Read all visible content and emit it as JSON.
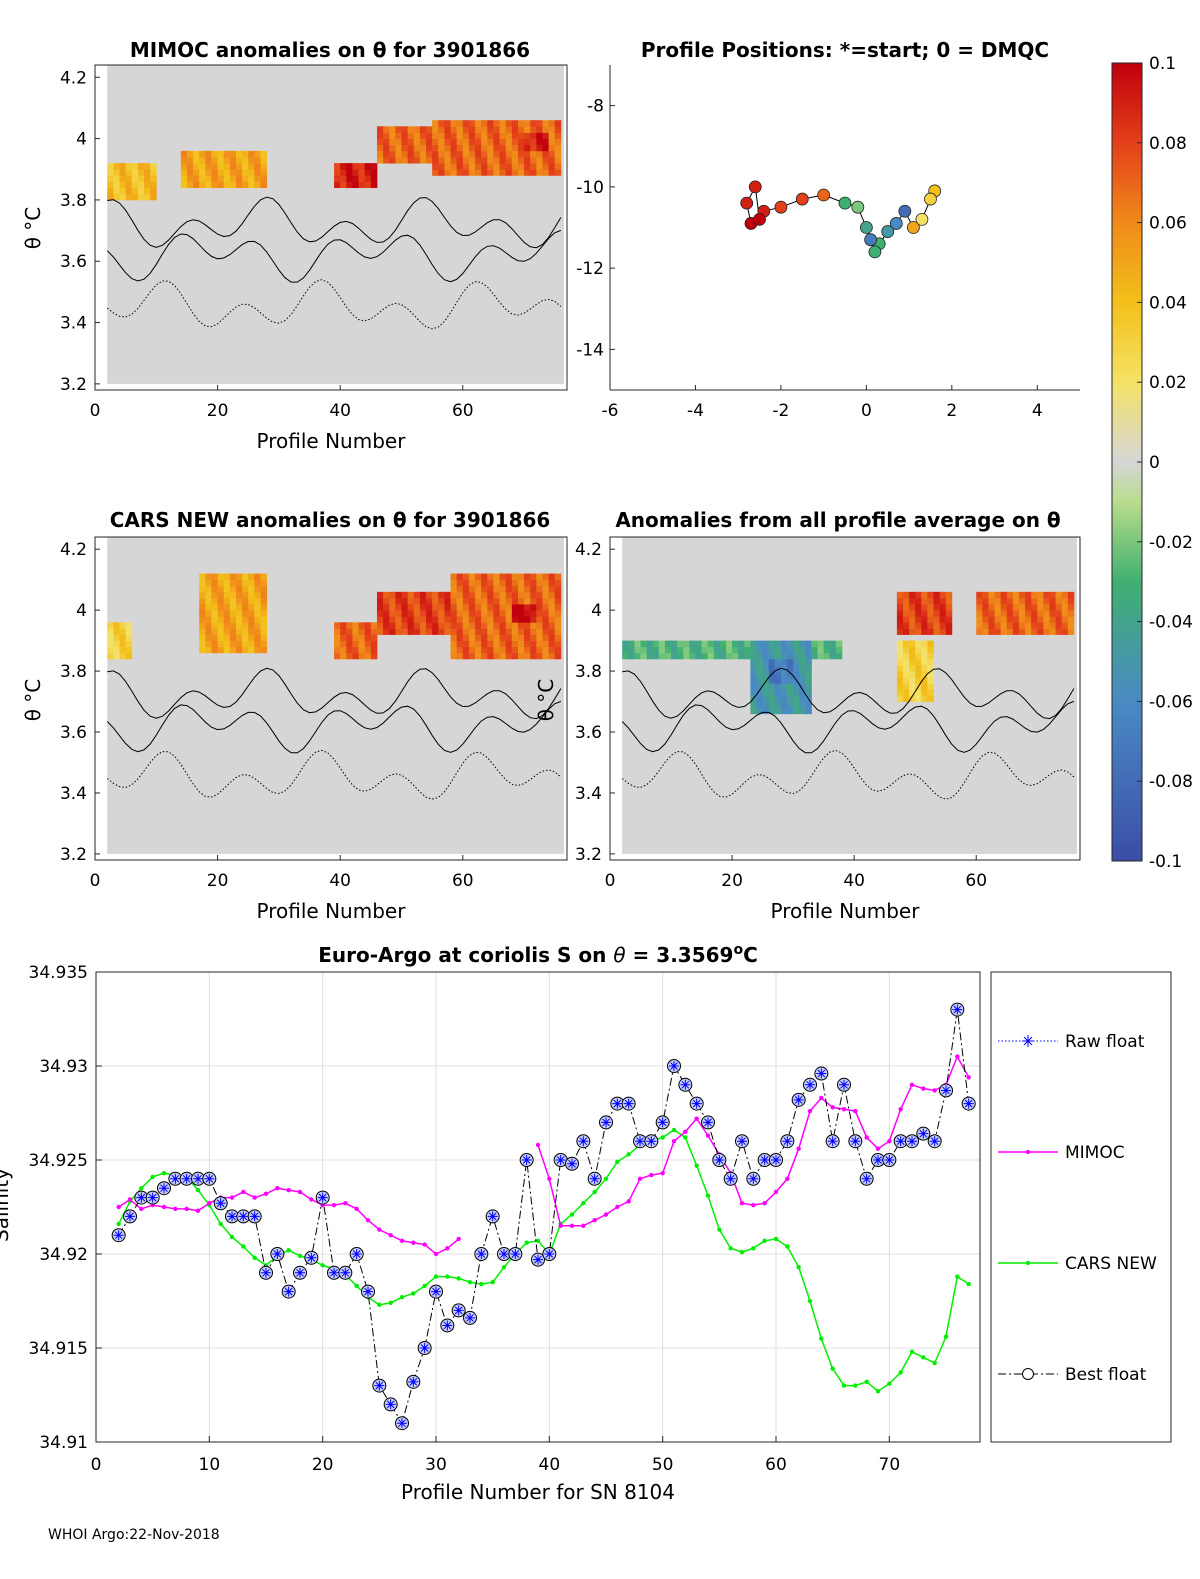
{
  "footer": "WHOI Argo:22-Nov-2018",
  "chart_data": [
    {
      "type": "heatmap",
      "id": "mimoc",
      "title": "MIMOC anomalies on θ  for 3901866",
      "xlabel": "Profile Number",
      "ylabel": "θ °C",
      "xlim": [
        0,
        77
      ],
      "ylim": [
        3.18,
        4.24
      ],
      "xticks": [
        "0",
        "20",
        "40",
        "60"
      ],
      "yticks": [
        "3.2",
        "3.4",
        "3.6",
        "3.8",
        "4",
        "4.2"
      ],
      "features": [
        {
          "x": [
            2,
            10
          ],
          "y": [
            3.8,
            3.92
          ],
          "value": 0.04
        },
        {
          "x": [
            14,
            28
          ],
          "y": [
            3.84,
            3.96
          ],
          "value": 0.05
        },
        {
          "x": [
            39,
            46
          ],
          "y": [
            3.84,
            3.92
          ],
          "value": 0.09
        },
        {
          "x": [
            46,
            55
          ],
          "y": [
            3.92,
            4.04
          ],
          "value": 0.07
        },
        {
          "x": [
            55,
            76
          ],
          "y": [
            3.88,
            4.06
          ],
          "value": 0.07
        },
        {
          "x": [
            70,
            74
          ],
          "y": [
            3.96,
            4.02
          ],
          "value": 0.09
        }
      ]
    },
    {
      "type": "scatter",
      "id": "positions",
      "title": "Profile Positions: *=start; 0 = DMQC",
      "xlim": [
        -6,
        5
      ],
      "ylim": [
        -15,
        -7
      ],
      "xticks": [
        "-6",
        "-4",
        "-2",
        "0",
        "2",
        "4"
      ],
      "yticks": [
        "-8",
        "-10",
        "-12",
        "-14"
      ],
      "points": [
        {
          "x": 1.6,
          "y": -10.1,
          "value": 0.04
        },
        {
          "x": 1.5,
          "y": -10.3,
          "value": 0.03
        },
        {
          "x": 1.3,
          "y": -10.8,
          "value": 0.02
        },
        {
          "x": 1.1,
          "y": -11.0,
          "value": 0.05
        },
        {
          "x": 0.9,
          "y": -10.6,
          "value": -0.08
        },
        {
          "x": 0.7,
          "y": -10.9,
          "value": -0.06
        },
        {
          "x": 0.5,
          "y": -11.1,
          "value": -0.05
        },
        {
          "x": 0.3,
          "y": -11.4,
          "value": -0.03
        },
        {
          "x": 0.2,
          "y": -11.6,
          "value": -0.03
        },
        {
          "x": 0.1,
          "y": -11.3,
          "value": -0.07
        },
        {
          "x": 0.0,
          "y": -11.0,
          "value": -0.04
        },
        {
          "x": -0.2,
          "y": -10.5,
          "value": -0.02
        },
        {
          "x": -0.5,
          "y": -10.4,
          "value": -0.03
        },
        {
          "x": -1.0,
          "y": -10.2,
          "value": 0.07
        },
        {
          "x": -1.5,
          "y": -10.3,
          "value": 0.08
        },
        {
          "x": -2.0,
          "y": -10.5,
          "value": 0.08
        },
        {
          "x": -2.4,
          "y": -10.6,
          "value": 0.09
        },
        {
          "x": -2.7,
          "y": -10.9,
          "value": 0.1
        },
        {
          "x": -2.8,
          "y": -10.4,
          "value": 0.09
        },
        {
          "x": -2.6,
          "y": -10.0,
          "value": 0.09
        },
        {
          "x": -2.5,
          "y": -10.8,
          "value": 0.1
        }
      ]
    },
    {
      "type": "heatmap",
      "id": "cars",
      "title": "CARS NEW anomalies on θ for 3901866",
      "xlabel": "Profile Number",
      "ylabel": "θ °C",
      "xlim": [
        0,
        77
      ],
      "ylim": [
        3.18,
        4.24
      ],
      "xticks": [
        "0",
        "20",
        "40",
        "60"
      ],
      "yticks": [
        "3.2",
        "3.4",
        "3.6",
        "3.8",
        "4",
        "4.2"
      ],
      "features": [
        {
          "x": [
            2,
            6
          ],
          "y": [
            3.84,
            3.96
          ],
          "value": 0.03
        },
        {
          "x": [
            17,
            28
          ],
          "y": [
            3.86,
            4.1
          ],
          "value": 0.05
        },
        {
          "x": [
            39,
            46
          ],
          "y": [
            3.84,
            3.96
          ],
          "value": 0.07
        },
        {
          "x": [
            46,
            58
          ],
          "y": [
            3.92,
            4.06
          ],
          "value": 0.08
        },
        {
          "x": [
            58,
            76
          ],
          "y": [
            3.84,
            4.1
          ],
          "value": 0.07
        },
        {
          "x": [
            68,
            72
          ],
          "y": [
            3.96,
            4.02
          ],
          "value": 0.1
        }
      ]
    },
    {
      "type": "heatmap",
      "id": "allavg",
      "title": "Anomalies from all profile average on θ",
      "xlabel": "Profile Number",
      "ylabel": "θ °C",
      "xlim": [
        0,
        77
      ],
      "ylim": [
        3.18,
        4.24
      ],
      "xticks": [
        "0",
        "20",
        "40",
        "60"
      ],
      "yticks": [
        "3.2",
        "3.4",
        "3.6",
        "3.8",
        "4",
        "4.2"
      ],
      "features": [
        {
          "x": [
            2,
            38
          ],
          "y": [
            3.84,
            3.9
          ],
          "value": -0.03
        },
        {
          "x": [
            23,
            33
          ],
          "y": [
            3.65,
            3.9
          ],
          "value": -0.05
        },
        {
          "x": [
            26,
            30
          ],
          "y": [
            3.76,
            3.84
          ],
          "value": -0.07
        },
        {
          "x": [
            47,
            56
          ],
          "y": [
            3.92,
            4.06
          ],
          "value": 0.08
        },
        {
          "x": [
            60,
            76
          ],
          "y": [
            3.92,
            4.06
          ],
          "value": 0.07
        },
        {
          "x": [
            47,
            53
          ],
          "y": [
            3.7,
            3.9
          ],
          "value": 0.03
        }
      ]
    },
    {
      "type": "line",
      "id": "salinity",
      "title": "Euro-Argo at coriolis S on θ = 3.3569°C",
      "title_pre": "Euro-Argo at coriolis S on ",
      "title_theta": "θ",
      "title_val": " = 3.3569",
      "title_sup": "o",
      "title_post": "C",
      "xlabel": "Profile Number for SN 8104",
      "ylabel": "Salinity",
      "xlim": [
        0,
        78
      ],
      "ylim": [
        34.91,
        34.935
      ],
      "xticks": [
        "0",
        "10",
        "20",
        "30",
        "40",
        "50",
        "60",
        "70"
      ],
      "yticks": [
        "34.91",
        "34.915",
        "34.92",
        "34.925",
        "34.93",
        "34.935"
      ],
      "series": [
        {
          "name": "Raw float",
          "color": "#0000ff",
          "x": [
            2,
            3,
            4,
            5,
            6,
            7,
            8,
            9,
            10,
            11,
            12,
            13,
            14,
            15,
            16,
            17,
            18,
            19,
            20,
            21,
            22,
            23,
            24,
            25,
            26,
            27,
            28,
            29,
            30,
            31,
            32,
            33,
            34,
            35,
            36,
            37,
            38,
            39,
            40,
            41,
            42,
            43,
            44,
            45,
            46,
            47,
            48,
            49,
            50,
            51,
            52,
            53,
            54,
            55,
            56,
            57,
            58,
            59,
            60,
            61,
            62,
            63,
            64,
            65,
            66,
            67,
            68,
            69,
            70,
            71,
            72,
            73,
            74,
            75,
            76,
            77
          ],
          "values": [
            34.921,
            34.922,
            34.923,
            34.923,
            34.9235,
            34.924,
            34.924,
            34.924,
            34.924,
            34.9227,
            34.922,
            34.922,
            34.922,
            34.919,
            34.92,
            34.918,
            34.919,
            34.9198,
            34.923,
            34.919,
            34.919,
            34.92,
            34.918,
            34.913,
            34.912,
            34.911,
            34.9132,
            34.915,
            34.918,
            34.9162,
            34.917,
            34.9166,
            34.92,
            34.922,
            34.92,
            34.92,
            34.925,
            34.9197,
            34.92,
            34.925,
            34.9248,
            34.926,
            34.924,
            34.927,
            34.928,
            34.928,
            34.926,
            34.926,
            34.927,
            34.93,
            34.929,
            34.928,
            34.927,
            34.925,
            34.924,
            34.926,
            34.924,
            34.925,
            34.925,
            34.926,
            34.9282,
            34.929,
            34.9296,
            34.926,
            34.929,
            34.926,
            34.924,
            34.925,
            34.925,
            34.926,
            34.926,
            34.9264,
            34.926,
            34.9287,
            34.933,
            34.928
          ]
        },
        {
          "name": "MIMOC",
          "color": "#ff00ff",
          "x": [
            2,
            3,
            4,
            5,
            6,
            7,
            8,
            9,
            10,
            11,
            12,
            13,
            14,
            15,
            16,
            17,
            18,
            19,
            20,
            21,
            22,
            23,
            24,
            25,
            26,
            27,
            28,
            29,
            30,
            31,
            32,
            null,
            38,
            39,
            40,
            41,
            42,
            43,
            44,
            45,
            46,
            47,
            48,
            49,
            50,
            51,
            52,
            53,
            54,
            55,
            56,
            57,
            58,
            59,
            60,
            61,
            62,
            63,
            64,
            65,
            66,
            67,
            68,
            69,
            70,
            71,
            72,
            73,
            74,
            75,
            76,
            77
          ],
          "values": [
            34.9225,
            34.9229,
            34.9224,
            34.9226,
            34.9225,
            34.9224,
            34.9224,
            34.9223,
            34.9227,
            34.923,
            34.923,
            34.9233,
            34.923,
            34.9232,
            34.9235,
            34.9234,
            34.9233,
            34.9229,
            34.9226,
            34.9226,
            34.9227,
            34.9224,
            34.9218,
            34.9213,
            34.921,
            34.9207,
            34.9206,
            34.9205,
            34.92,
            34.9203,
            34.9208,
            34.9217,
            null,
            34.9258,
            34.924,
            34.9215,
            34.9215,
            34.9215,
            34.9218,
            34.9221,
            34.9225,
            34.9228,
            34.924,
            34.9242,
            34.9243,
            34.926,
            34.9265,
            34.9272,
            34.9263,
            34.9253,
            34.9243,
            34.9227,
            34.9226,
            34.9227,
            34.9233,
            34.924,
            34.9256,
            34.9276,
            34.9283,
            34.9278,
            34.9277,
            34.9276,
            34.9262,
            34.9256,
            34.926,
            34.9277,
            34.929,
            34.9288,
            34.9287,
            34.929,
            34.9305,
            34.9294
          ]
        },
        {
          "name": "CARS NEW",
          "color": "#00ee00",
          "x": [
            2,
            3,
            4,
            5,
            6,
            7,
            8,
            9,
            10,
            11,
            12,
            13,
            14,
            15,
            16,
            17,
            18,
            19,
            20,
            21,
            22,
            23,
            24,
            25,
            26,
            27,
            28,
            29,
            30,
            31,
            32,
            33,
            34,
            35,
            36,
            37,
            38,
            39,
            40,
            41,
            42,
            43,
            44,
            45,
            46,
            47,
            48,
            49,
            50,
            51,
            52,
            53,
            54,
            55,
            56,
            57,
            58,
            59,
            60,
            61,
            62,
            63,
            64,
            65,
            66,
            67,
            68,
            69,
            70,
            71,
            72,
            73,
            74,
            75,
            76,
            77
          ],
          "values": [
            34.9216,
            34.9228,
            34.9235,
            34.9241,
            34.9243,
            34.9242,
            34.9241,
            34.9234,
            34.9226,
            34.9216,
            34.9209,
            34.9204,
            34.9198,
            34.9194,
            34.9199,
            34.9202,
            34.9199,
            34.9197,
            34.9194,
            34.9192,
            34.9189,
            34.9183,
            34.9177,
            34.9173,
            34.9174,
            34.9177,
            34.9179,
            34.9183,
            34.9188,
            34.9188,
            34.9187,
            34.9185,
            34.9184,
            34.9185,
            34.9193,
            34.92,
            34.9206,
            34.9207,
            34.92,
            34.9216,
            34.9221,
            34.9227,
            34.9233,
            34.924,
            34.9249,
            34.9253,
            34.9258,
            34.926,
            34.9262,
            34.9266,
            34.9262,
            34.9247,
            34.9231,
            34.9213,
            34.9203,
            34.9201,
            34.9203,
            34.9207,
            34.9208,
            34.9204,
            34.9193,
            34.9175,
            34.9155,
            34.9139,
            34.913,
            34.913,
            34.9132,
            34.9127,
            34.9131,
            34.9137,
            34.9148,
            34.9145,
            34.9142,
            34.9156,
            34.9188,
            34.9184
          ]
        },
        {
          "name": "Best float",
          "color": "#000000"
        }
      ]
    }
  ],
  "colorbar": {
    "min": -0.1,
    "max": 0.1,
    "ticks": [
      "0.1",
      "0.08",
      "0.06",
      "0.04",
      "0.02",
      "0",
      "-0.02",
      "-0.04",
      "-0.06",
      "-0.08",
      "-0.1"
    ]
  }
}
